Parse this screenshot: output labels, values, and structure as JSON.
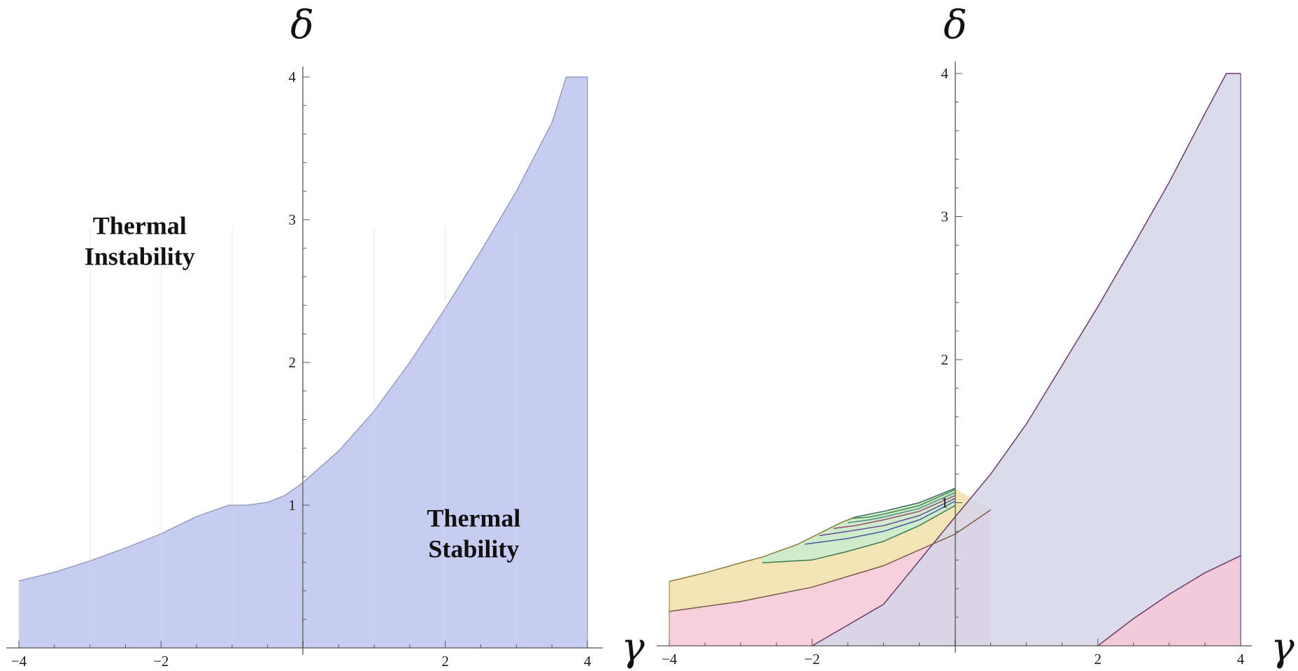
{
  "chart_data": [
    {
      "type": "area",
      "xlabel": "γ",
      "ylabel": "δ",
      "xlim": [
        -4,
        4
      ],
      "ylim": [
        0,
        4
      ],
      "x_ticks": [
        "−4",
        "−2",
        "2",
        "4"
      ],
      "y_ticks": [
        "1",
        "2",
        "3",
        "4"
      ],
      "annotations": [
        {
          "lines": [
            "Thermal",
            "Instability"
          ],
          "x": -2.3,
          "y": 2.9
        },
        {
          "lines": [
            "Thermal",
            "Stability"
          ],
          "x": 2.4,
          "y": 0.85
        }
      ],
      "series": [
        {
          "fill": "#c6cdf0",
          "stroke": "#8d93b5",
          "boundary": [
            [
              -4,
              0.47
            ],
            [
              -3.5,
              0.53
            ],
            [
              -3,
              0.61
            ],
            [
              -2.5,
              0.7
            ],
            [
              -2,
              0.8
            ],
            [
              -1.5,
              0.92
            ],
            [
              -1.05,
              1.0
            ],
            [
              -0.8,
              1.0
            ],
            [
              -0.5,
              1.02
            ],
            [
              -0.25,
              1.07
            ],
            [
              0,
              1.16
            ],
            [
              0.5,
              1.38
            ],
            [
              1,
              1.66
            ],
            [
              1.5,
              2.0
            ],
            [
              2,
              2.38
            ],
            [
              2.5,
              2.78
            ],
            [
              3,
              3.2
            ],
            [
              3.5,
              3.68
            ],
            [
              3.7,
              4.0
            ],
            [
              4,
              4.0
            ]
          ]
        }
      ]
    },
    {
      "type": "area",
      "xlabel": "γ",
      "ylabel": "δ",
      "xlim": [
        -4,
        4
      ],
      "ylim": [
        0,
        4
      ],
      "x_ticks": [
        "−4",
        "−2",
        "2",
        "4"
      ],
      "y_ticks": [
        "1",
        "2",
        "3",
        "4"
      ],
      "regions": [
        {
          "fill": "#f0dfa8",
          "upper": [
            [
              -4,
              0.45
            ],
            [
              -3.5,
              0.51
            ],
            [
              -3,
              0.58
            ],
            [
              -2.7,
              0.62
            ],
            [
              -2.2,
              0.71
            ],
            [
              -1.6,
              0.86
            ],
            [
              -1.4,
              0.9
            ],
            [
              -1,
              0.94
            ],
            [
              -0.5,
              1.0
            ],
            [
              0,
              1.1
            ]
          ],
          "lower": [
            [
              -4,
              0.24
            ],
            [
              -3,
              0.31
            ],
            [
              -2,
              0.41
            ],
            [
              -1,
              0.56
            ],
            [
              0,
              0.78
            ],
            [
              0.5,
              0.95
            ]
          ]
        },
        {
          "fill": "#c8ecd0",
          "upper": [
            [
              -2.7,
              0.62
            ],
            [
              -2,
              0.75
            ],
            [
              -1.6,
              0.86
            ],
            [
              -1.4,
              0.9
            ],
            [
              -1,
              0.94
            ],
            [
              -0.5,
              1.0
            ],
            [
              0,
              1.1
            ]
          ],
          "lower": [
            [
              -2.7,
              0.58
            ],
            [
              -2,
              0.6
            ],
            [
              -1.5,
              0.66
            ],
            [
              -1,
              0.73
            ],
            [
              -0.5,
              0.84
            ],
            [
              0,
              0.98
            ]
          ]
        },
        {
          "fill": "#f5c8d6",
          "upper": [
            [
              -4,
              0.24
            ],
            [
              -3,
              0.31
            ],
            [
              -2,
              0.41
            ],
            [
              -1,
              0.56
            ],
            [
              0,
              0.78
            ],
            [
              0.5,
              0.95
            ]
          ],
          "lower": [
            [
              -4,
              0
            ],
            [
              0.5,
              0
            ]
          ]
        },
        {
          "fill": "#d6d5e8",
          "upper": [
            [
              -2,
              0
            ],
            [
              -1,
              0.29
            ],
            [
              0,
              0.9
            ],
            [
              0.5,
              1.2
            ],
            [
              1,
              1.55
            ],
            [
              1.5,
              1.96
            ],
            [
              2,
              2.37
            ],
            [
              2.5,
              2.8
            ],
            [
              3,
              3.24
            ],
            [
              3.5,
              3.72
            ],
            [
              3.8,
              4.0
            ],
            [
              4,
              4.0
            ]
          ],
          "lower": [
            [
              -2,
              0
            ],
            [
              4,
              0
            ]
          ]
        },
        {
          "fill": "#f5c8d6",
          "upper": [
            [
              2,
              0
            ],
            [
              2.5,
              0.19
            ],
            [
              3,
              0.36
            ],
            [
              3.5,
              0.51
            ],
            [
              4,
              0.63
            ]
          ],
          "lower": [
            [
              2,
              0
            ],
            [
              4,
              0
            ]
          ]
        }
      ],
      "series": [
        {
          "stroke": "#6b3a6b",
          "values": [
            [
              -2,
              0
            ],
            [
              -1,
              0.29
            ],
            [
              0,
              0.9
            ],
            [
              0.5,
              1.2
            ],
            [
              1,
              1.55
            ],
            [
              1.5,
              1.96
            ],
            [
              2,
              2.37
            ],
            [
              2.5,
              2.8
            ],
            [
              3,
              3.24
            ],
            [
              3.5,
              3.72
            ],
            [
              3.8,
              4.0
            ],
            [
              4,
              4.0
            ]
          ]
        },
        {
          "stroke": "#6b3a6b",
          "values": [
            [
              2,
              0
            ],
            [
              2.5,
              0.19
            ],
            [
              3,
              0.36
            ],
            [
              3.5,
              0.51
            ],
            [
              4,
              0.63
            ]
          ]
        },
        {
          "stroke": "#7b5a4a",
          "values": [
            [
              -4,
              0.24
            ],
            [
              -3,
              0.31
            ],
            [
              -2,
              0.41
            ],
            [
              -1,
              0.56
            ],
            [
              0,
              0.78
            ],
            [
              0.5,
              0.95
            ]
          ]
        },
        {
          "stroke": "#8a7a3a",
          "values": [
            [
              -4,
              0.45
            ],
            [
              -3.5,
              0.51
            ],
            [
              -3,
              0.58
            ],
            [
              -2.7,
              0.62
            ],
            [
              -2.2,
              0.71
            ],
            [
              -1.6,
              0.86
            ],
            [
              -1.4,
              0.9
            ]
          ]
        },
        {
          "stroke": "#3a7a4a",
          "values": [
            [
              -2.7,
              0.58
            ],
            [
              -2,
              0.6
            ],
            [
              -1.5,
              0.66
            ],
            [
              -1,
              0.73
            ],
            [
              -0.5,
              0.84
            ],
            [
              0,
              0.98
            ]
          ]
        },
        {
          "stroke": "#4a5aa0",
          "values": [
            [
              -2.1,
              0.71
            ],
            [
              -1.5,
              0.75
            ],
            [
              -1,
              0.8
            ],
            [
              -0.5,
              0.88
            ],
            [
              0,
              1.01
            ]
          ]
        },
        {
          "stroke": "#6a4aa0",
          "values": [
            [
              -1.9,
              0.77
            ],
            [
              -1.5,
              0.8
            ],
            [
              -1,
              0.84
            ],
            [
              -0.5,
              0.91
            ],
            [
              0,
              1.03
            ]
          ]
        },
        {
          "stroke": "#a04a6a",
          "values": [
            [
              -1.7,
              0.82
            ],
            [
              -1.4,
              0.84
            ],
            [
              -1,
              0.88
            ],
            [
              -0.5,
              0.94
            ],
            [
              0,
              1.05
            ]
          ]
        },
        {
          "stroke": "#4a8a8a",
          "values": [
            [
              -1.5,
              0.86
            ],
            [
              -1.2,
              0.88
            ],
            [
              -1,
              0.9
            ],
            [
              -0.5,
              0.96
            ],
            [
              0,
              1.07
            ]
          ]
        },
        {
          "stroke": "#4a8a4a",
          "values": [
            [
              -1.45,
              0.89
            ],
            [
              -1.2,
              0.9
            ],
            [
              -1,
              0.92
            ],
            [
              -0.5,
              0.98
            ],
            [
              0,
              1.09
            ]
          ]
        },
        {
          "stroke": "#3a6a6a",
          "values": [
            [
              -1.4,
              0.9
            ],
            [
              -1,
              0.94
            ],
            [
              -0.5,
              1.0
            ],
            [
              0,
              1.1
            ]
          ]
        }
      ]
    }
  ]
}
